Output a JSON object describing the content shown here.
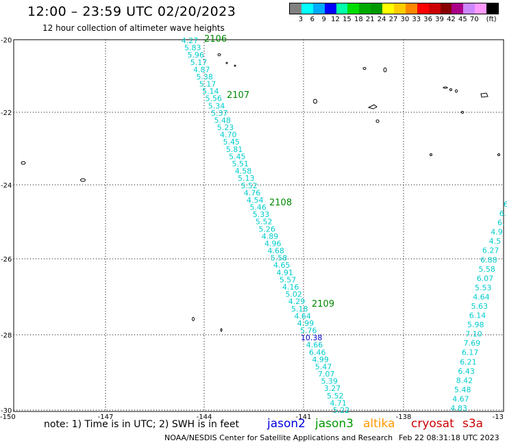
{
  "title": "12:00 – 23:59 UTC 02/20/2023",
  "subtitle": "12 hour collection of altimeter wave heights",
  "legend": {
    "colors": [
      "#808080",
      "#00ffff",
      "#00aaff",
      "#0000ff",
      "#00ffaa",
      "#00dd00",
      "#00aa00",
      "#009900",
      "#ffff00",
      "#ffcc00",
      "#ff8800",
      "#ff0000",
      "#cc0000",
      "#880000",
      "#aa0088",
      "#cc88ff",
      "#ff99ff",
      "#000000"
    ],
    "labels": [
      "3",
      "6",
      "9",
      "12",
      "15",
      "18",
      "21",
      "24",
      "27",
      "30",
      "33",
      "36",
      "39",
      "42",
      "45",
      "70",
      "(ft)"
    ]
  },
  "axes": {
    "lat_labels": [
      "-20",
      "-22",
      "-24",
      "-26",
      "-28",
      "-30"
    ],
    "lon_labels": [
      "-150",
      "-147",
      "-144",
      "-141",
      "-138",
      "-13"
    ]
  },
  "passes": {
    "pass_a": {
      "labels": [
        "2106",
        "2107",
        "2108",
        "2109"
      ],
      "values": [
        "4.27",
        "5.83",
        "5.96",
        "5.17",
        "4.87",
        "5.38",
        "5.17",
        "5.14",
        "5.56",
        "5.34",
        "5.37",
        "5.48",
        "5.23",
        "4.70",
        "5.45",
        "5.81",
        "5.45",
        "5.51",
        "4.58",
        "5.13",
        "5.52",
        "4.76",
        "4.54",
        "5.46",
        "5.33",
        "5.52",
        "5.26",
        "4.89",
        "4.96",
        "4.68",
        "5.58",
        "4.65",
        "4.91",
        "5.57",
        "4.16",
        "5.02",
        "4.29",
        "5.18",
        "4.64",
        "4.99",
        "5.76",
        "10.38",
        "4.66",
        "6.46",
        "4.99",
        "5.47",
        "7.07",
        "5.39",
        "3.27",
        "5.52",
        "4.71",
        "5.22"
      ]
    },
    "pass_b": {
      "values": [
        "6",
        "6.",
        "6.",
        "4.9",
        "4.5",
        "6.27",
        "6.88",
        "5.58",
        "6.07",
        "5.53",
        "4.64",
        "5.63",
        "6.14",
        "5.98",
        "7.10",
        "7.69",
        "6.17",
        "6.21",
        "6.43",
        "8.42",
        "5.48",
        "4.67",
        "4.83"
      ]
    }
  },
  "note": "note: 1) Time is in UTC; 2) SWH is in feet",
  "satellites": [
    {
      "name": "jason2",
      "color": "#0000dd"
    },
    {
      "name": "jason3",
      "color": "#009900"
    },
    {
      "name": "altika",
      "color": "#ff9900"
    },
    {
      "name": "cryosat",
      "color": "#cc0000"
    },
    {
      "name": "s3a",
      "color": "#cc0000"
    }
  ],
  "credit": "NOAA/NESDIS Center for Satellite Applications and Research",
  "generated": "Feb 22 08:31:18 UTC 2023",
  "colors": {
    "wave_text": "#00cccc",
    "high_wave_text": "#0000cc",
    "pass_label": "#008800"
  }
}
